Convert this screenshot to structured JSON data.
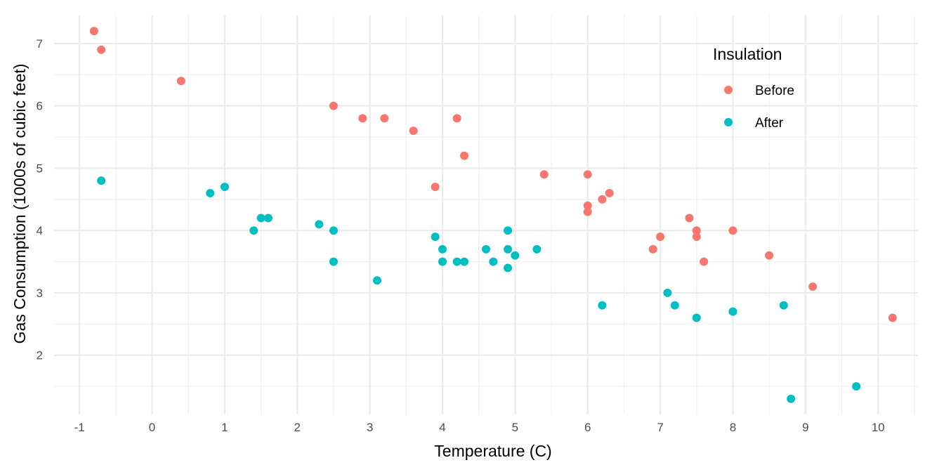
{
  "chart_data": {
    "type": "scatter",
    "title": "",
    "xlabel": "Temperature (C)",
    "ylabel": "Gas Consumption (1000s of cubic feet)",
    "xlim": [
      -1.35,
      10.55
    ],
    "ylim": [
      1.05,
      7.45
    ],
    "x_ticks": [
      -1,
      0,
      1,
      2,
      3,
      4,
      5,
      6,
      7,
      8,
      9,
      10
    ],
    "x_tick_labels": [
      "-1",
      "0",
      "1",
      "2",
      "3",
      "4",
      "5",
      "6",
      "7",
      "8",
      "9",
      "10"
    ],
    "y_ticks": [
      2,
      3,
      4,
      5,
      6,
      7
    ],
    "y_tick_labels": [
      "2",
      "3",
      "4",
      "5",
      "6",
      "7"
    ],
    "grid": true,
    "legend": {
      "title": "Insulation",
      "placement": "top-right",
      "entries": [
        "Before",
        "After"
      ]
    },
    "series": [
      {
        "name": "Before",
        "color": "#F8766D",
        "x": [
          -0.8,
          -0.7,
          0.4,
          2.5,
          2.9,
          3.2,
          3.6,
          3.9,
          4.2,
          4.3,
          5.4,
          6.0,
          6.0,
          6.0,
          6.2,
          6.3,
          6.9,
          7.0,
          7.4,
          7.5,
          7.5,
          7.6,
          8.0,
          8.5,
          9.1,
          10.2
        ],
        "y": [
          7.2,
          6.9,
          6.4,
          6.0,
          5.8,
          5.8,
          5.6,
          4.7,
          5.8,
          5.2,
          4.9,
          4.9,
          4.3,
          4.4,
          4.5,
          4.6,
          3.7,
          3.9,
          4.2,
          4.0,
          3.9,
          3.5,
          4.0,
          3.6,
          3.1,
          2.6
        ]
      },
      {
        "name": "After",
        "color": "#00BFC4",
        "x": [
          -0.7,
          0.8,
          1.0,
          1.4,
          1.5,
          1.6,
          2.3,
          2.5,
          2.5,
          3.1,
          3.9,
          4.0,
          4.0,
          4.2,
          4.3,
          4.6,
          4.7,
          4.9,
          4.9,
          4.9,
          5.0,
          5.3,
          6.2,
          7.1,
          7.2,
          7.5,
          8.0,
          8.7,
          8.8,
          9.7
        ],
        "y": [
          4.8,
          4.6,
          4.7,
          4.0,
          4.2,
          4.2,
          4.1,
          4.0,
          3.5,
          3.2,
          3.9,
          3.5,
          3.7,
          3.5,
          3.5,
          3.7,
          3.5,
          3.4,
          3.7,
          4.0,
          3.6,
          3.7,
          2.8,
          3.0,
          2.8,
          2.6,
          2.7,
          2.8,
          1.3,
          1.5
        ]
      }
    ]
  }
}
